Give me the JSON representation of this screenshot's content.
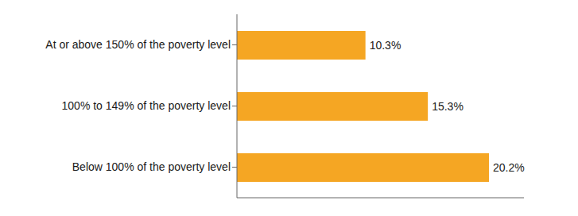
{
  "chart_data": {
    "type": "bar",
    "orientation": "horizontal",
    "categories": [
      "At or above 150% of the poverty level",
      "100% to 149% of the poverty level",
      "Below 100% of the poverty level"
    ],
    "values": [
      10.3,
      15.3,
      20.2
    ],
    "value_labels": [
      "10.3%",
      "15.3%",
      "20.2%"
    ],
    "data_labels": true,
    "color": "#F5A623",
    "xlim": [
      0,
      23
    ],
    "tick_labels": "y",
    "grid": false
  }
}
